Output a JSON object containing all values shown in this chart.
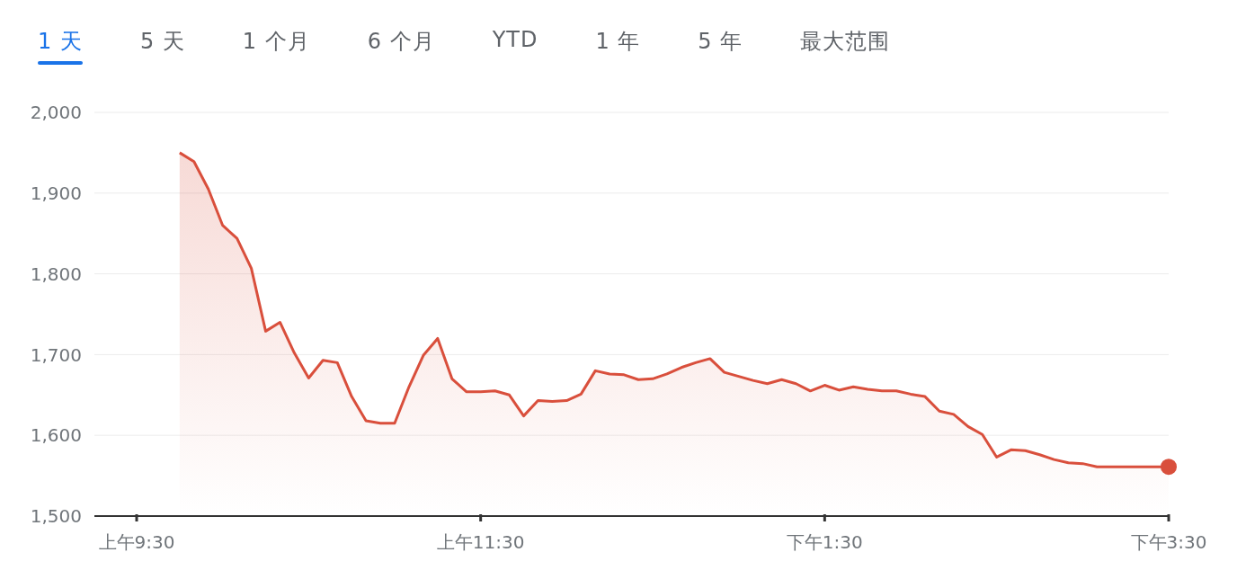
{
  "chart_data": {
    "type": "area",
    "annotations": [
      "1 天",
      "5 天",
      "1 个月",
      "6 个月",
      "YTD",
      "1 年",
      "5 年",
      "最大范围"
    ],
    "categories": [
      "上午9:30",
      null,
      null,
      null,
      null,
      null,
      null,
      null,
      null,
      null,
      null,
      null,
      null,
      null,
      null,
      null,
      null,
      null,
      null,
      null,
      null,
      null,
      null,
      null,
      "上午11:30",
      null,
      null,
      null,
      null,
      null,
      null,
      null,
      null,
      null,
      null,
      null,
      null,
      null,
      null,
      null,
      null,
      null,
      null,
      null,
      null,
      null,
      null,
      null,
      "下午1:30",
      null,
      null,
      null,
      null,
      null,
      null,
      null,
      null,
      null,
      null,
      null,
      null,
      null,
      null,
      null,
      null,
      null,
      null,
      null,
      null,
      null,
      null,
      null,
      "下午3:30"
    ],
    "series": [
      {
        "color": "#d94f3c",
        "values": [
          null,
          null,
          null,
          1950,
          1939,
          1905,
          1860,
          1844,
          1807,
          1729,
          1740,
          1702,
          1671,
          1693,
          1690,
          1648,
          1618,
          1615,
          1615,
          1660,
          1699,
          1720,
          1670,
          1654,
          1654,
          1655,
          1650,
          1624,
          1643,
          1642,
          1643,
          1651,
          1680,
          1676,
          1675,
          1669,
          1670,
          1676,
          1684,
          1690,
          1695,
          1678,
          1673,
          1668,
          1664,
          1669,
          1664,
          1655,
          1662,
          1656,
          1660,
          1657,
          1655,
          1655,
          1651,
          1648,
          1630,
          1626,
          1611,
          1601,
          1573,
          1582,
          1581,
          1576,
          1570,
          1566,
          1565,
          1561,
          1561,
          1561,
          1561,
          1561,
          1561
        ]
      }
    ],
    "ylim": [
      1500,
      2000
    ],
    "yticks": [
      {
        "value": 1500,
        "label": "1,500"
      },
      {
        "value": 1600,
        "label": "1,600"
      },
      {
        "value": 1700,
        "label": "1,700"
      },
      {
        "value": 1800,
        "label": "1,800"
      },
      {
        "value": 1900,
        "label": "1,900"
      },
      {
        "value": 2000,
        "label": "2,000"
      }
    ],
    "grid": "y",
    "marker": "none"
  }
}
